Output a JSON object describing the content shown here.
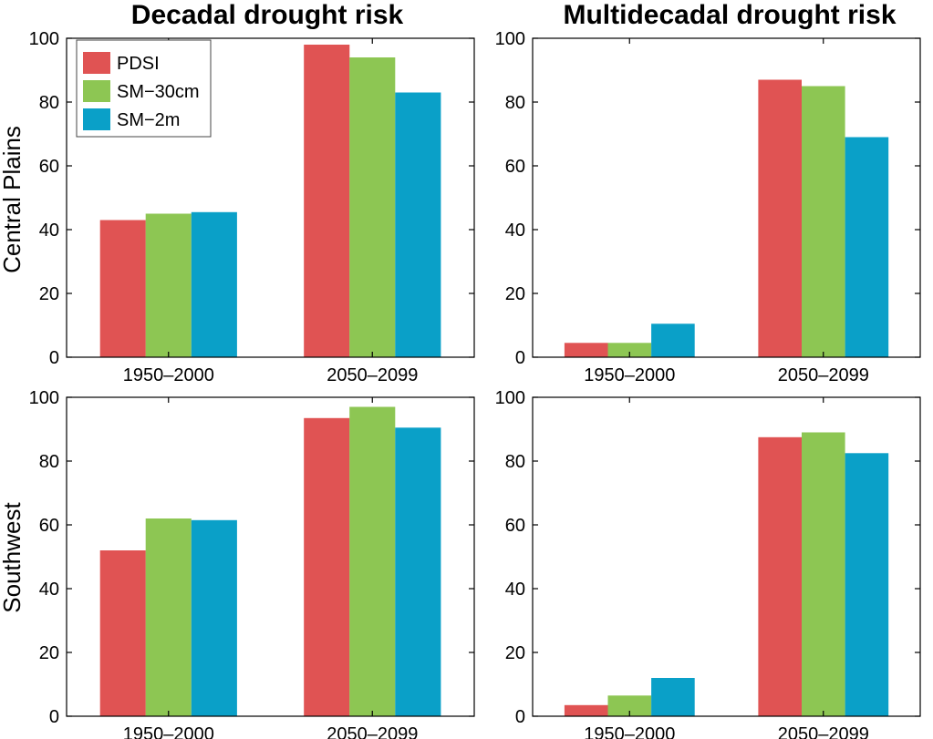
{
  "figure": {
    "col_titles": [
      "Decadal drought risk",
      "Multidecadal drought risk"
    ],
    "row_labels": [
      "Central Plains",
      "Southwest"
    ]
  },
  "legend": {
    "placement": "top-left of first panel",
    "entries": [
      {
        "label": "PDSI",
        "color": "#e05353"
      },
      {
        "label": "SM−30cm",
        "color": "#8dc653"
      },
      {
        "label": "SM−2m",
        "color": "#0aa0c8"
      }
    ]
  },
  "chart_data": [
    {
      "type": "bar",
      "title": "Decadal drought risk",
      "ylabel": "Central Plains",
      "xlabel": "",
      "categories": [
        "1950–2000",
        "2050–2099"
      ],
      "ylim": [
        0,
        100
      ],
      "yticks": [
        0,
        20,
        40,
        60,
        80,
        100
      ],
      "grid": false,
      "series": [
        {
          "name": "PDSI",
          "color": "#e05353",
          "values": [
            43,
            98
          ]
        },
        {
          "name": "SM−30cm",
          "color": "#8dc653",
          "values": [
            45,
            94
          ]
        },
        {
          "name": "SM−2m",
          "color": "#0aa0c8",
          "values": [
            45.5,
            83
          ]
        }
      ]
    },
    {
      "type": "bar",
      "title": "Multidecadal drought risk",
      "ylabel": "",
      "xlabel": "",
      "categories": [
        "1950–2000",
        "2050–2099"
      ],
      "ylim": [
        0,
        100
      ],
      "yticks": [
        0,
        20,
        40,
        60,
        80,
        100
      ],
      "grid": false,
      "series": [
        {
          "name": "PDSI",
          "color": "#e05353",
          "values": [
            4.5,
            87
          ]
        },
        {
          "name": "SM−30cm",
          "color": "#8dc653",
          "values": [
            4.5,
            85
          ]
        },
        {
          "name": "SM−2m",
          "color": "#0aa0c8",
          "values": [
            10.5,
            69
          ]
        }
      ]
    },
    {
      "type": "bar",
      "title": "",
      "ylabel": "Southwest",
      "xlabel": "",
      "categories": [
        "1950–2000",
        "2050–2099"
      ],
      "ylim": [
        0,
        100
      ],
      "yticks": [
        0,
        20,
        40,
        60,
        80,
        100
      ],
      "grid": false,
      "series": [
        {
          "name": "PDSI",
          "color": "#e05353",
          "values": [
            52,
            93.5
          ]
        },
        {
          "name": "SM−30cm",
          "color": "#8dc653",
          "values": [
            62,
            97
          ]
        },
        {
          "name": "SM−2m",
          "color": "#0aa0c8",
          "values": [
            61.5,
            90.5
          ]
        }
      ]
    },
    {
      "type": "bar",
      "title": "",
      "ylabel": "",
      "xlabel": "",
      "categories": [
        "1950–2000",
        "2050–2099"
      ],
      "ylim": [
        0,
        100
      ],
      "yticks": [
        0,
        20,
        40,
        60,
        80,
        100
      ],
      "grid": false,
      "series": [
        {
          "name": "PDSI",
          "color": "#e05353",
          "values": [
            3.5,
            87.5
          ]
        },
        {
          "name": "SM−30cm",
          "color": "#8dc653",
          "values": [
            6.5,
            89
          ]
        },
        {
          "name": "SM−2m",
          "color": "#0aa0c8",
          "values": [
            12,
            82.5
          ]
        }
      ]
    }
  ]
}
